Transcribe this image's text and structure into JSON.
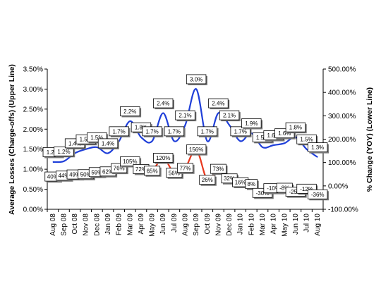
{
  "chart_data": {
    "type": "line",
    "categories": [
      "Aug 08",
      "Sep 08",
      "Oct 08",
      "Nov 08",
      "Dec 08",
      "Jan 09",
      "Feb 09",
      "Mar 09",
      "Apr 09",
      "May 09",
      "Jun 09",
      "Jul 09",
      "Aug 09",
      "Sep 09",
      "Oct 09",
      "Nov 09",
      "Dec 09",
      "Jan 10",
      "Feb 10",
      "Mar 10",
      "Apr 10",
      "May 10",
      "Jun 10",
      "Jul 10",
      "Aug 10"
    ],
    "left_axis": {
      "label": "Average Losses (Charge-offs) (Upper Line)",
      "ylim": [
        0,
        3.5
      ],
      "ticks": [
        "0.00%",
        "0.50%",
        "1.00%",
        "1.50%",
        "2.00%",
        "2.50%",
        "3.00%",
        "3.50%"
      ],
      "tick_values": [
        0,
        0.5,
        1.0,
        1.5,
        2.0,
        2.5,
        3.0,
        3.5
      ]
    },
    "right_axis": {
      "label": "% Change (YOY) (Lower Line)",
      "ylim": [
        -100,
        500
      ],
      "ticks": [
        "-100.00%",
        "0.00%",
        "100.00%",
        "200.00%",
        "300.00%",
        "400.00%",
        "500.00%"
      ],
      "tick_values": [
        -100,
        0,
        100,
        200,
        300,
        400,
        500
      ]
    },
    "series": [
      {
        "axis": "left",
        "color": "#1f3fd9",
        "values": [
          1.18,
          1.2,
          1.4,
          1.5,
          1.55,
          1.4,
          1.7,
          2.2,
          1.8,
          1.7,
          2.4,
          1.7,
          2.1,
          3.0,
          1.7,
          2.4,
          2.1,
          1.7,
          1.9,
          1.55,
          1.6,
          1.65,
          1.8,
          1.5,
          1.3
        ],
        "labels": [
          "1.2%",
          "1.2%",
          "1.4%",
          "1.5%",
          "1.5%",
          "1.4%",
          "1.7%",
          "2.2%",
          "1.8%",
          "1.7%",
          "2.4%",
          "1.7%",
          "2.1%",
          "3.0%",
          "1.7%",
          "2.4%",
          "2.1%",
          "1.7%",
          "1.9%",
          "1.5%",
          "1.6%",
          "1.6%",
          "1.8%",
          "1.5%",
          "1.3%"
        ]
      },
      {
        "axis": "right",
        "color": "#e8381e",
        "values": [
          40,
          44,
          49,
          50,
          59,
          62,
          76,
          105,
          72,
          65,
          120,
          56,
          77,
          156,
          26,
          73,
          32,
          16,
          8,
          -30,
          -10,
          -8,
          -25,
          -12,
          -36
        ],
        "labels": [
          "40%",
          "44%",
          "49%",
          "50%",
          "59%",
          "62%",
          "76%",
          "105%",
          "72%",
          "65%",
          "120%",
          "56%",
          "77%",
          "156%",
          "26%",
          "73%",
          "32%",
          "16%",
          "8%",
          "-30%",
          "-10%",
          "-8%",
          "-25%",
          "-12%",
          "-36%"
        ]
      }
    ],
    "grid": false,
    "legend": "none"
  }
}
